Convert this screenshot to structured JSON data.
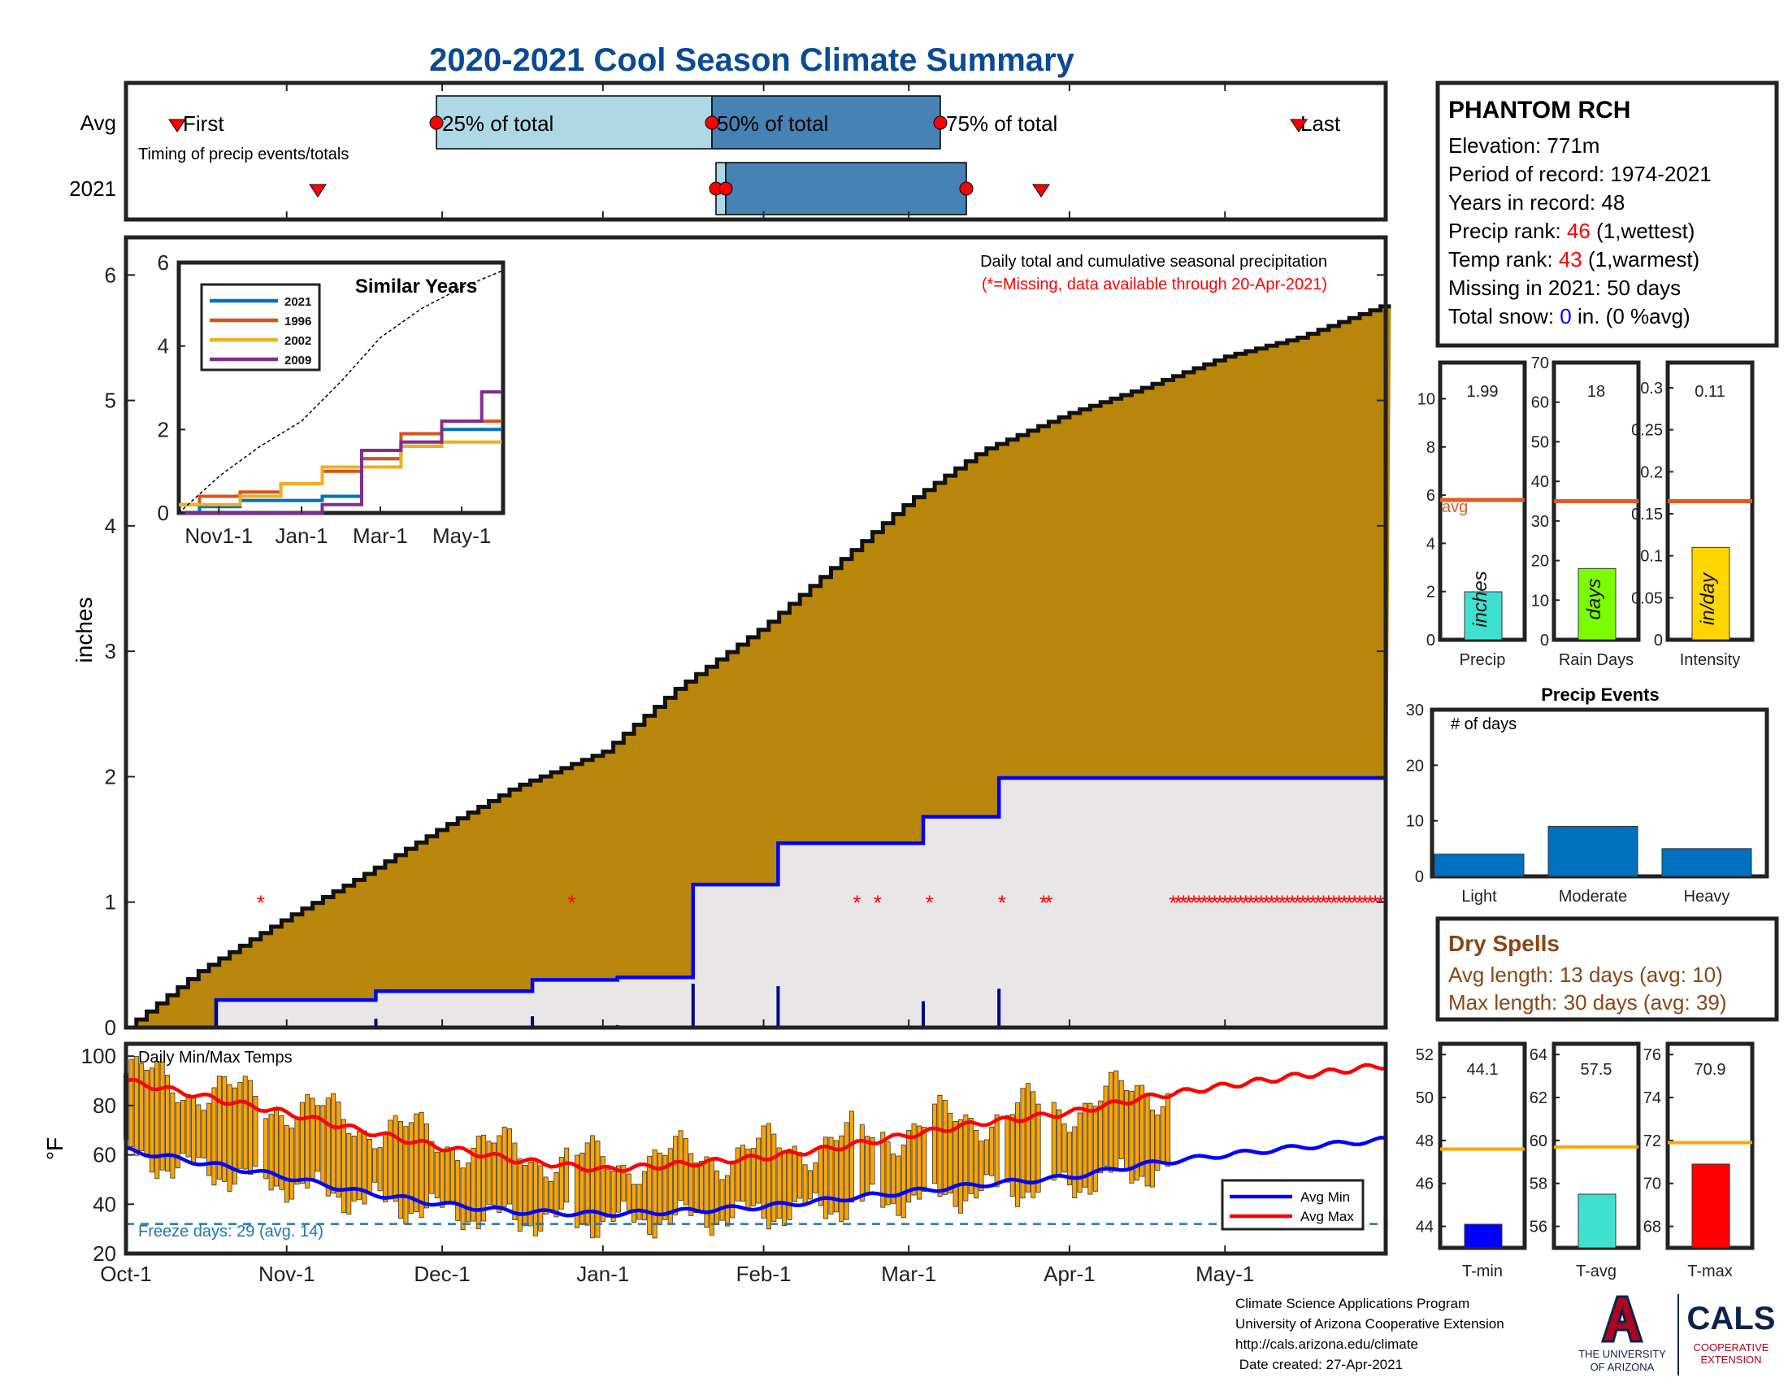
{
  "title": "2020-2021 Cool Season Climate Summary",
  "timing": {
    "row_labels": [
      "Avg",
      "2021"
    ],
    "first_label": "First",
    "last_label": "Last",
    "p25_label": "25% of total",
    "p50_label": "50% of total",
    "p75_label": "75% of total",
    "caption": "Timing of precip events/totals"
  },
  "station": {
    "name": "PHANTOM RCH",
    "elevation_label": "Elevation: 771m",
    "period_label": "Period of record: 1974-2021",
    "years_label": "Years in record: 48",
    "precip_rank_prefix": "Precip rank: ",
    "precip_rank": "46",
    "precip_rank_suffix": " (1,wettest)",
    "temp_rank_prefix": "Temp rank: ",
    "temp_rank": "43",
    "temp_rank_suffix": " (1,warmest)",
    "missing_label": "Missing in 2021: 50 days",
    "snow_prefix": "Total snow: ",
    "snow_value": "0",
    "snow_suffix": " in. (0 %avg)"
  },
  "main": {
    "ylabel": "inches",
    "yticks": [
      "0",
      "1",
      "2",
      "3",
      "4",
      "5",
      "6"
    ],
    "legend_line1": "Daily total and cumulative seasonal precipitation",
    "legend_line2": "(*=Missing, data available through 20-Apr-2021)",
    "missing_marker": "*"
  },
  "inset": {
    "title": "Similar Years",
    "yticks": [
      "0",
      "2",
      "4",
      "6"
    ],
    "xticks": [
      "Nov1-1",
      "Jan-1",
      "Mar-1",
      "May-1"
    ],
    "legend": [
      "2021",
      "1996",
      "2002",
      "2009"
    ]
  },
  "temps": {
    "title": "Daily Min/Max Temps",
    "ylabel": "°F",
    "yticks": [
      "20",
      "40",
      "60",
      "80",
      "100"
    ],
    "freeze_label": "Freeze days: 29 (avg. 14)",
    "legend_min": "Avg Min",
    "legend_max": "Avg Max"
  },
  "x_months": [
    "Oct-1",
    "Nov-1",
    "Dec-1",
    "Jan-1",
    "Feb-1",
    "Mar-1",
    "Apr-1",
    "May-1"
  ],
  "small_bars": {
    "precip": {
      "value_label": "1.99",
      "unit": "inches",
      "xlabel": "Precip",
      "avg_label": "avg",
      "yticks": [
        "0",
        "2",
        "4",
        "6",
        "8",
        "10"
      ]
    },
    "rain_days": {
      "value_label": "18",
      "unit": "days",
      "xlabel": "Rain Days",
      "yticks": [
        "0",
        "10",
        "20",
        "30",
        "40",
        "50",
        "60",
        "70"
      ]
    },
    "intensity": {
      "value_label": "0.11",
      "unit": "in/day",
      "xlabel": "Intensity",
      "yticks": [
        "0",
        "0.05",
        "0.1",
        "0.15",
        "0.2",
        "0.25",
        "0.3"
      ]
    }
  },
  "events": {
    "title": "Precip Events",
    "ylabel": "# of days",
    "yticks": [
      "0",
      "10",
      "20",
      "30"
    ],
    "categories": [
      "Light",
      "Moderate",
      "Heavy"
    ]
  },
  "dry_spells": {
    "title": "Dry Spells",
    "avg_line": "Avg length: 13 days (avg: 10)",
    "max_line": "Max length: 30 days (avg: 39)"
  },
  "temp_bars": {
    "tmin": {
      "value_label": "44.1",
      "xlabel": "T-min",
      "yticks": [
        "44",
        "46",
        "48",
        "50",
        "52"
      ]
    },
    "tavg": {
      "value_label": "57.5",
      "xlabel": "T-avg",
      "yticks": [
        "56",
        "58",
        "60",
        "62",
        "64"
      ]
    },
    "tmax": {
      "value_label": "70.9",
      "xlabel": "T-max",
      "yticks": [
        "68",
        "70",
        "72",
        "74",
        "76"
      ]
    }
  },
  "footer": {
    "line1": "Climate Science Applications Program",
    "line2": "University of Arizona Cooperative Extension",
    "line3": "http://cals.arizona.edu/climate",
    "line4": " Date created: 27-Apr-2021",
    "ua_line1": "THE UNIVERSITY",
    "ua_line2": "OF ARIZONA",
    "cals": "CALS",
    "cals_sub1": "COOPERATIVE",
    "cals_sub2": "EXTENSION"
  },
  "colors": {
    "title": "#0A4A96",
    "fill": "#B8860B",
    "obs_line": "#0000FF",
    "avg_min": "#0000FF",
    "avg_max": "#FF0000",
    "temp_bar": "#FFA500",
    "missing": "#FF0000",
    "rank": "#FF0000",
    "snow": "#0000FF",
    "dry": "#8B4513",
    "precip_bar": "#40E0D0",
    "rain_bar": "#7CFC00",
    "intensity_bar": "#FFD700",
    "event_bar": "#0070C0",
    "tmin_bar": "#0000FF",
    "tavg_bar": "#40E0D0",
    "tmax_bar": "#FF0000",
    "avg_line_small": "#E05A1E",
    "avg_line_temp": "#FFA500"
  },
  "chart_data": [
    {
      "type": "area",
      "name": "cumulative",
      "ylabel": "inches",
      "ylim": [
        0,
        6.3
      ],
      "x_dates": [
        "Oct-1",
        "Oct-15",
        "Nov-1",
        "Nov-15",
        "Dec-1",
        "Dec-15",
        "Jan-1",
        "Jan-15",
        "Feb-1",
        "Feb-15",
        "Mar-1",
        "Mar-15",
        "Apr-1",
        "Apr-15",
        "May-1",
        "May-15",
        "May-31"
      ],
      "average_cumulative": [
        0.0,
        0.45,
        0.88,
        1.2,
        1.6,
        1.92,
        2.2,
        2.7,
        3.2,
        3.7,
        4.2,
        4.6,
        4.9,
        5.1,
        5.35,
        5.5,
        5.75
      ],
      "observed_2021_cumulative": [
        0.0,
        0.0,
        0.22,
        0.22,
        0.29,
        0.29,
        0.38,
        0.4,
        1.14,
        1.47,
        1.47,
        1.68,
        1.99,
        1.99,
        1.99,
        1.99,
        1.99
      ],
      "missing_dates": [
        "Oct-27",
        "Dec-26",
        "Feb-19",
        "Feb-23",
        "Mar-5",
        "Mar-19",
        "Mar-27",
        "Mar-28",
        "Apr-21 to May-31"
      ]
    },
    {
      "type": "line",
      "name": "similar_years",
      "x_dates": [
        "Oct-1",
        "Nov-1",
        "Dec-1",
        "Jan-1",
        "Feb-1",
        "Mar-1",
        "Apr-1",
        "May-1",
        "May-31"
      ],
      "ylim": [
        0,
        6
      ],
      "series": [
        {
          "name": "2021",
          "values": [
            0.0,
            0.15,
            0.3,
            0.3,
            0.4,
            1.3,
            1.6,
            2.0,
            2.0
          ]
        },
        {
          "name": "1996",
          "values": [
            0.2,
            0.4,
            0.5,
            0.7,
            1.0,
            1.3,
            1.9,
            2.2,
            2.2
          ]
        },
        {
          "name": "2002",
          "values": [
            0.2,
            0.2,
            0.4,
            0.7,
            1.1,
            1.1,
            1.6,
            1.7,
            1.7
          ]
        },
        {
          "name": "2009",
          "values": [
            0.0,
            0.0,
            0.0,
            0.0,
            0.2,
            1.5,
            1.7,
            2.2,
            2.9
          ]
        },
        {
          "name": "Average",
          "values": [
            0.0,
            0.9,
            1.6,
            2.2,
            3.2,
            4.2,
            4.9,
            5.4,
            5.8
          ]
        }
      ]
    },
    {
      "type": "line",
      "name": "daily_temps",
      "ylabel": "°F",
      "ylim": [
        20,
        105
      ],
      "x_dates": [
        "Oct-1",
        "Oct-15",
        "Nov-1",
        "Nov-15",
        "Dec-1",
        "Dec-15",
        "Jan-1",
        "Jan-15",
        "Feb-1",
        "Feb-15",
        "Mar-1",
        "Mar-15",
        "Apr-1",
        "Apr-15",
        "May-1",
        "May-15",
        "May-31"
      ],
      "series": [
        {
          "name": "Avg Max",
          "values": [
            90,
            84,
            77,
            70,
            63,
            58,
            54,
            56,
            59,
            63,
            68,
            73,
            77,
            83,
            88,
            92,
            96
          ]
        },
        {
          "name": "Avg Min",
          "values": [
            62,
            57,
            51,
            45,
            40,
            37,
            36,
            37,
            39,
            42,
            45,
            48,
            51,
            56,
            60,
            63,
            66
          ]
        }
      ],
      "freeze_threshold": 32
    },
    {
      "type": "bar",
      "name": "season_totals",
      "categories": [
        "Precip",
        "Rain Days",
        "Intensity"
      ],
      "values": [
        1.99,
        18,
        0.11
      ],
      "averages": [
        5.8,
        35,
        0.165
      ]
    },
    {
      "type": "bar",
      "name": "precip_events",
      "categories": [
        "Light",
        "Moderate",
        "Heavy"
      ],
      "values": [
        4,
        9,
        5
      ],
      "ylim": [
        0,
        30
      ]
    },
    {
      "type": "bar",
      "name": "season_temps",
      "categories": [
        "T-min",
        "T-avg",
        "T-max"
      ],
      "values": [
        44.1,
        57.5,
        70.9
      ],
      "averages": [
        47.6,
        59.7,
        71.9
      ]
    }
  ]
}
